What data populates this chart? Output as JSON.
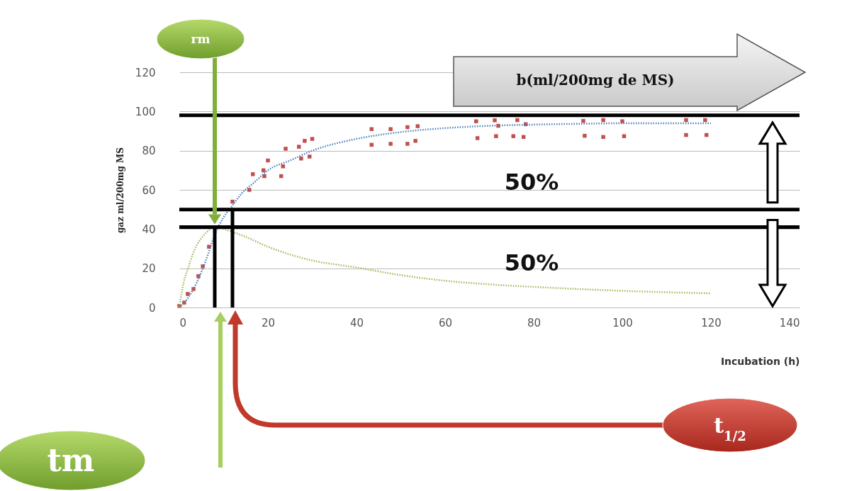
{
  "chart_data": {
    "type": "scatter",
    "xlabel": "Incubation (h)",
    "ylabel": "gaz ml/200mg MS",
    "xlim": [
      0,
      140
    ],
    "xticks": [
      0,
      20,
      40,
      60,
      80,
      100,
      120,
      140
    ],
    "ylim": [
      0,
      120
    ],
    "yticks": [
      0,
      20,
      40,
      60,
      80,
      100,
      120
    ],
    "grid": "y",
    "series": [
      {
        "marker": "square",
        "color": "#c0504d",
        "x": [
          0,
          1.1,
          1.9,
          3.2,
          4.3,
          5.3,
          6.7,
          12,
          15.8,
          16.6,
          19,
          19.2,
          20,
          23,
          23.4,
          24,
          27,
          27.5,
          28.3,
          29.4,
          30,
          43.4,
          43.4,
          47.7,
          47.7,
          51.5,
          53.3,
          51.5,
          53.8,
          67,
          67.3,
          71.2,
          72,
          71.5,
          75.4,
          77.7,
          76.3,
          78.2,
          91.2,
          91.5,
          95.7,
          95.7,
          100,
          100.4,
          114.4,
          114.4,
          118.7,
          119
        ],
        "values": [
          0.8,
          2.5,
          6.9,
          9.4,
          16,
          21,
          31,
          54,
          60,
          68,
          70,
          67,
          75,
          67,
          72,
          81,
          82,
          76,
          85,
          77,
          86,
          91,
          83,
          91,
          83.5,
          83.5,
          85,
          92,
          92.5,
          95,
          86.4,
          95.5,
          92.7,
          87.4,
          87.4,
          87,
          95.6,
          93.5,
          95.2,
          87.6,
          95.6,
          87,
          95,
          87.4,
          95.6,
          88,
          95.6,
          88
        ]
      },
      {
        "type": "line",
        "line_style": "dotted",
        "color": "#4f81bd",
        "x": [
          0,
          2,
          4,
          6,
          8,
          10,
          12,
          14,
          17,
          20,
          25,
          30,
          40,
          50,
          60,
          70,
          80,
          90,
          100,
          110,
          120
        ],
        "values": [
          0,
          5,
          13,
          24,
          37,
          46,
          52,
          58,
          64,
          70,
          75,
          80,
          86,
          89.5,
          91.5,
          92.7,
          93.3,
          93.7,
          94,
          94,
          94
        ]
      },
      {
        "type": "line",
        "line_style": "dotted",
        "color": "#9bbb59",
        "x": [
          0,
          1,
          2,
          3,
          4,
          6,
          8,
          10,
          15,
          20,
          25,
          30,
          40,
          50,
          62,
          70,
          84.5,
          100,
          120
        ],
        "values": [
          0,
          13,
          20,
          27,
          32,
          38,
          41,
          40,
          36,
          31,
          27,
          24,
          20.4,
          16.5,
          13.2,
          11.8,
          10,
          8.5,
          7.2
        ]
      },
      {
        "type": "line",
        "line_style": "solid",
        "color": "#000000",
        "x": [
          8,
          8
        ],
        "values": [
          0,
          41
        ]
      },
      {
        "type": "line",
        "line_style": "solid",
        "color": "#000000",
        "x": [
          12,
          12
        ],
        "values": [
          0,
          50
        ]
      }
    ],
    "ref_lines": [
      {
        "axis": "y",
        "value": 98,
        "color": "#000000"
      },
      {
        "axis": "y",
        "value": 50,
        "color": "#000000"
      },
      {
        "axis": "y",
        "value": 41,
        "color": "#000000"
      }
    ],
    "annotations": [
      "b(ml/200mg de MS)",
      "50%",
      "50%",
      "rm",
      "tm",
      "t$_{1/2}$"
    ]
  }
}
